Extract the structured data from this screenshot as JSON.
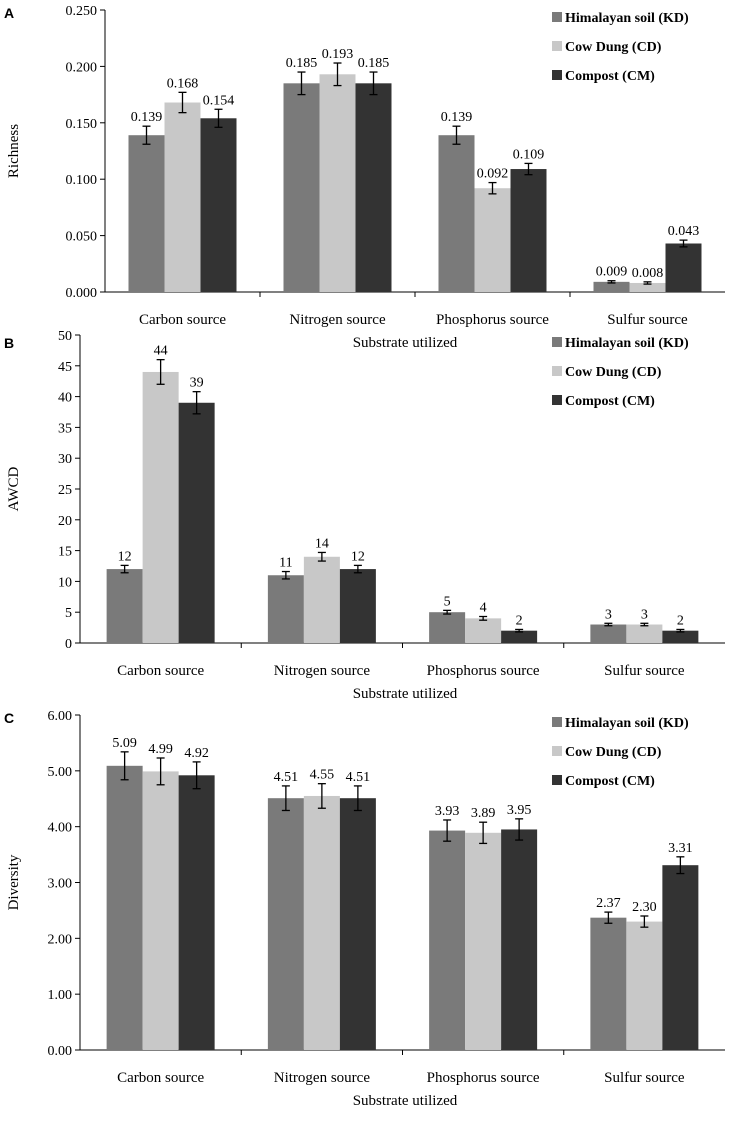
{
  "colors": {
    "series": [
      "#7a7a7a",
      "#c8c8c8",
      "#333333"
    ],
    "axis": "#000000",
    "error": "#000000"
  },
  "chart_data": [
    {
      "type": "bar",
      "panel_label": "A",
      "categories": [
        "Carbon source",
        "Nitrogen source",
        "Phosphorus source",
        "Sulfur source"
      ],
      "series": [
        {
          "name": "Himalayan soil (KD)",
          "values": [
            0.139,
            0.185,
            0.139,
            0.009
          ],
          "errors": [
            0.008,
            0.01,
            0.008,
            0.001
          ],
          "labels": [
            "0.139",
            "0.185",
            "0.139",
            "0.009"
          ]
        },
        {
          "name": "Cow Dung (CD)",
          "values": [
            0.168,
            0.193,
            0.092,
            0.008
          ],
          "errors": [
            0.009,
            0.01,
            0.005,
            0.001
          ],
          "labels": [
            "0.168",
            "0.193",
            "0.092",
            "0.008"
          ]
        },
        {
          "name": "Compost (CM)",
          "values": [
            0.154,
            0.185,
            0.109,
            0.043
          ],
          "errors": [
            0.008,
            0.01,
            0.005,
            0.003
          ],
          "labels": [
            "0.154",
            "0.185",
            "0.109",
            "0.043"
          ]
        }
      ],
      "ylabel": "Richness",
      "xlabel": "Substrate utilized",
      "ylim": [
        0,
        0.25
      ],
      "yticks": [
        0,
        0.05,
        0.1,
        0.15,
        0.2,
        0.25
      ],
      "ytick_labels": [
        "0.000",
        "0.050",
        "0.100",
        "0.150",
        "0.200",
        "0.250"
      ],
      "legend_position": "top-right"
    },
    {
      "type": "bar",
      "panel_label": "B",
      "categories": [
        "Carbon source",
        "Nitrogen source",
        "Phosphorus source",
        "Sulfur source"
      ],
      "series": [
        {
          "name": "Himalayan soil (KD)",
          "values": [
            12,
            11,
            5,
            3
          ],
          "errors": [
            0.6,
            0.6,
            0.3,
            0.2
          ],
          "labels": [
            "12",
            "11",
            "5",
            "3"
          ]
        },
        {
          "name": "Cow Dung (CD)",
          "values": [
            44,
            14,
            4,
            3
          ],
          "errors": [
            2,
            0.7,
            0.3,
            0.2
          ],
          "labels": [
            "44",
            "14",
            "4",
            "3"
          ]
        },
        {
          "name": "Compost (CM)",
          "values": [
            39,
            12,
            2,
            2
          ],
          "errors": [
            1.8,
            0.6,
            0.2,
            0.2
          ],
          "labels": [
            "39",
            "12",
            "2",
            "2"
          ]
        }
      ],
      "ylabel": "AWCD",
      "xlabel": "Substrate utilized",
      "ylim": [
        0,
        50
      ],
      "yticks": [
        0,
        5,
        10,
        15,
        20,
        25,
        30,
        35,
        40,
        45,
        50
      ],
      "ytick_labels": [
        "0",
        "5",
        "10",
        "15",
        "20",
        "25",
        "30",
        "35",
        "40",
        "45",
        "50"
      ],
      "legend_position": "top-right"
    },
    {
      "type": "bar",
      "panel_label": "C",
      "categories": [
        "Carbon source",
        "Nitrogen source",
        "Phosphorus source",
        "Sulfur source"
      ],
      "series": [
        {
          "name": "Himalayan soil (KD)",
          "values": [
            5.09,
            4.51,
            3.93,
            2.37
          ],
          "errors": [
            0.25,
            0.22,
            0.19,
            0.1
          ],
          "labels": [
            "5.09",
            "4.51",
            "3.93",
            "2.37"
          ]
        },
        {
          "name": "Cow Dung (CD)",
          "values": [
            4.99,
            4.55,
            3.89,
            2.3
          ],
          "errors": [
            0.24,
            0.22,
            0.19,
            0.1
          ],
          "labels": [
            "4.99",
            "4.55",
            "3.89",
            "2.30"
          ]
        },
        {
          "name": "Compost (CM)",
          "values": [
            4.92,
            4.51,
            3.95,
            3.31
          ],
          "errors": [
            0.24,
            0.22,
            0.19,
            0.15
          ],
          "labels": [
            "4.92",
            "4.51",
            "3.95",
            "3.31"
          ]
        }
      ],
      "ylabel": "Diversity",
      "xlabel": "Substrate utilized",
      "ylim": [
        0,
        6
      ],
      "yticks": [
        0,
        1,
        2,
        3,
        4,
        5,
        6
      ],
      "ytick_labels": [
        "0.00",
        "1.00",
        "2.00",
        "3.00",
        "4.00",
        "5.00",
        "6.00"
      ],
      "legend_position": "top-right"
    }
  ]
}
